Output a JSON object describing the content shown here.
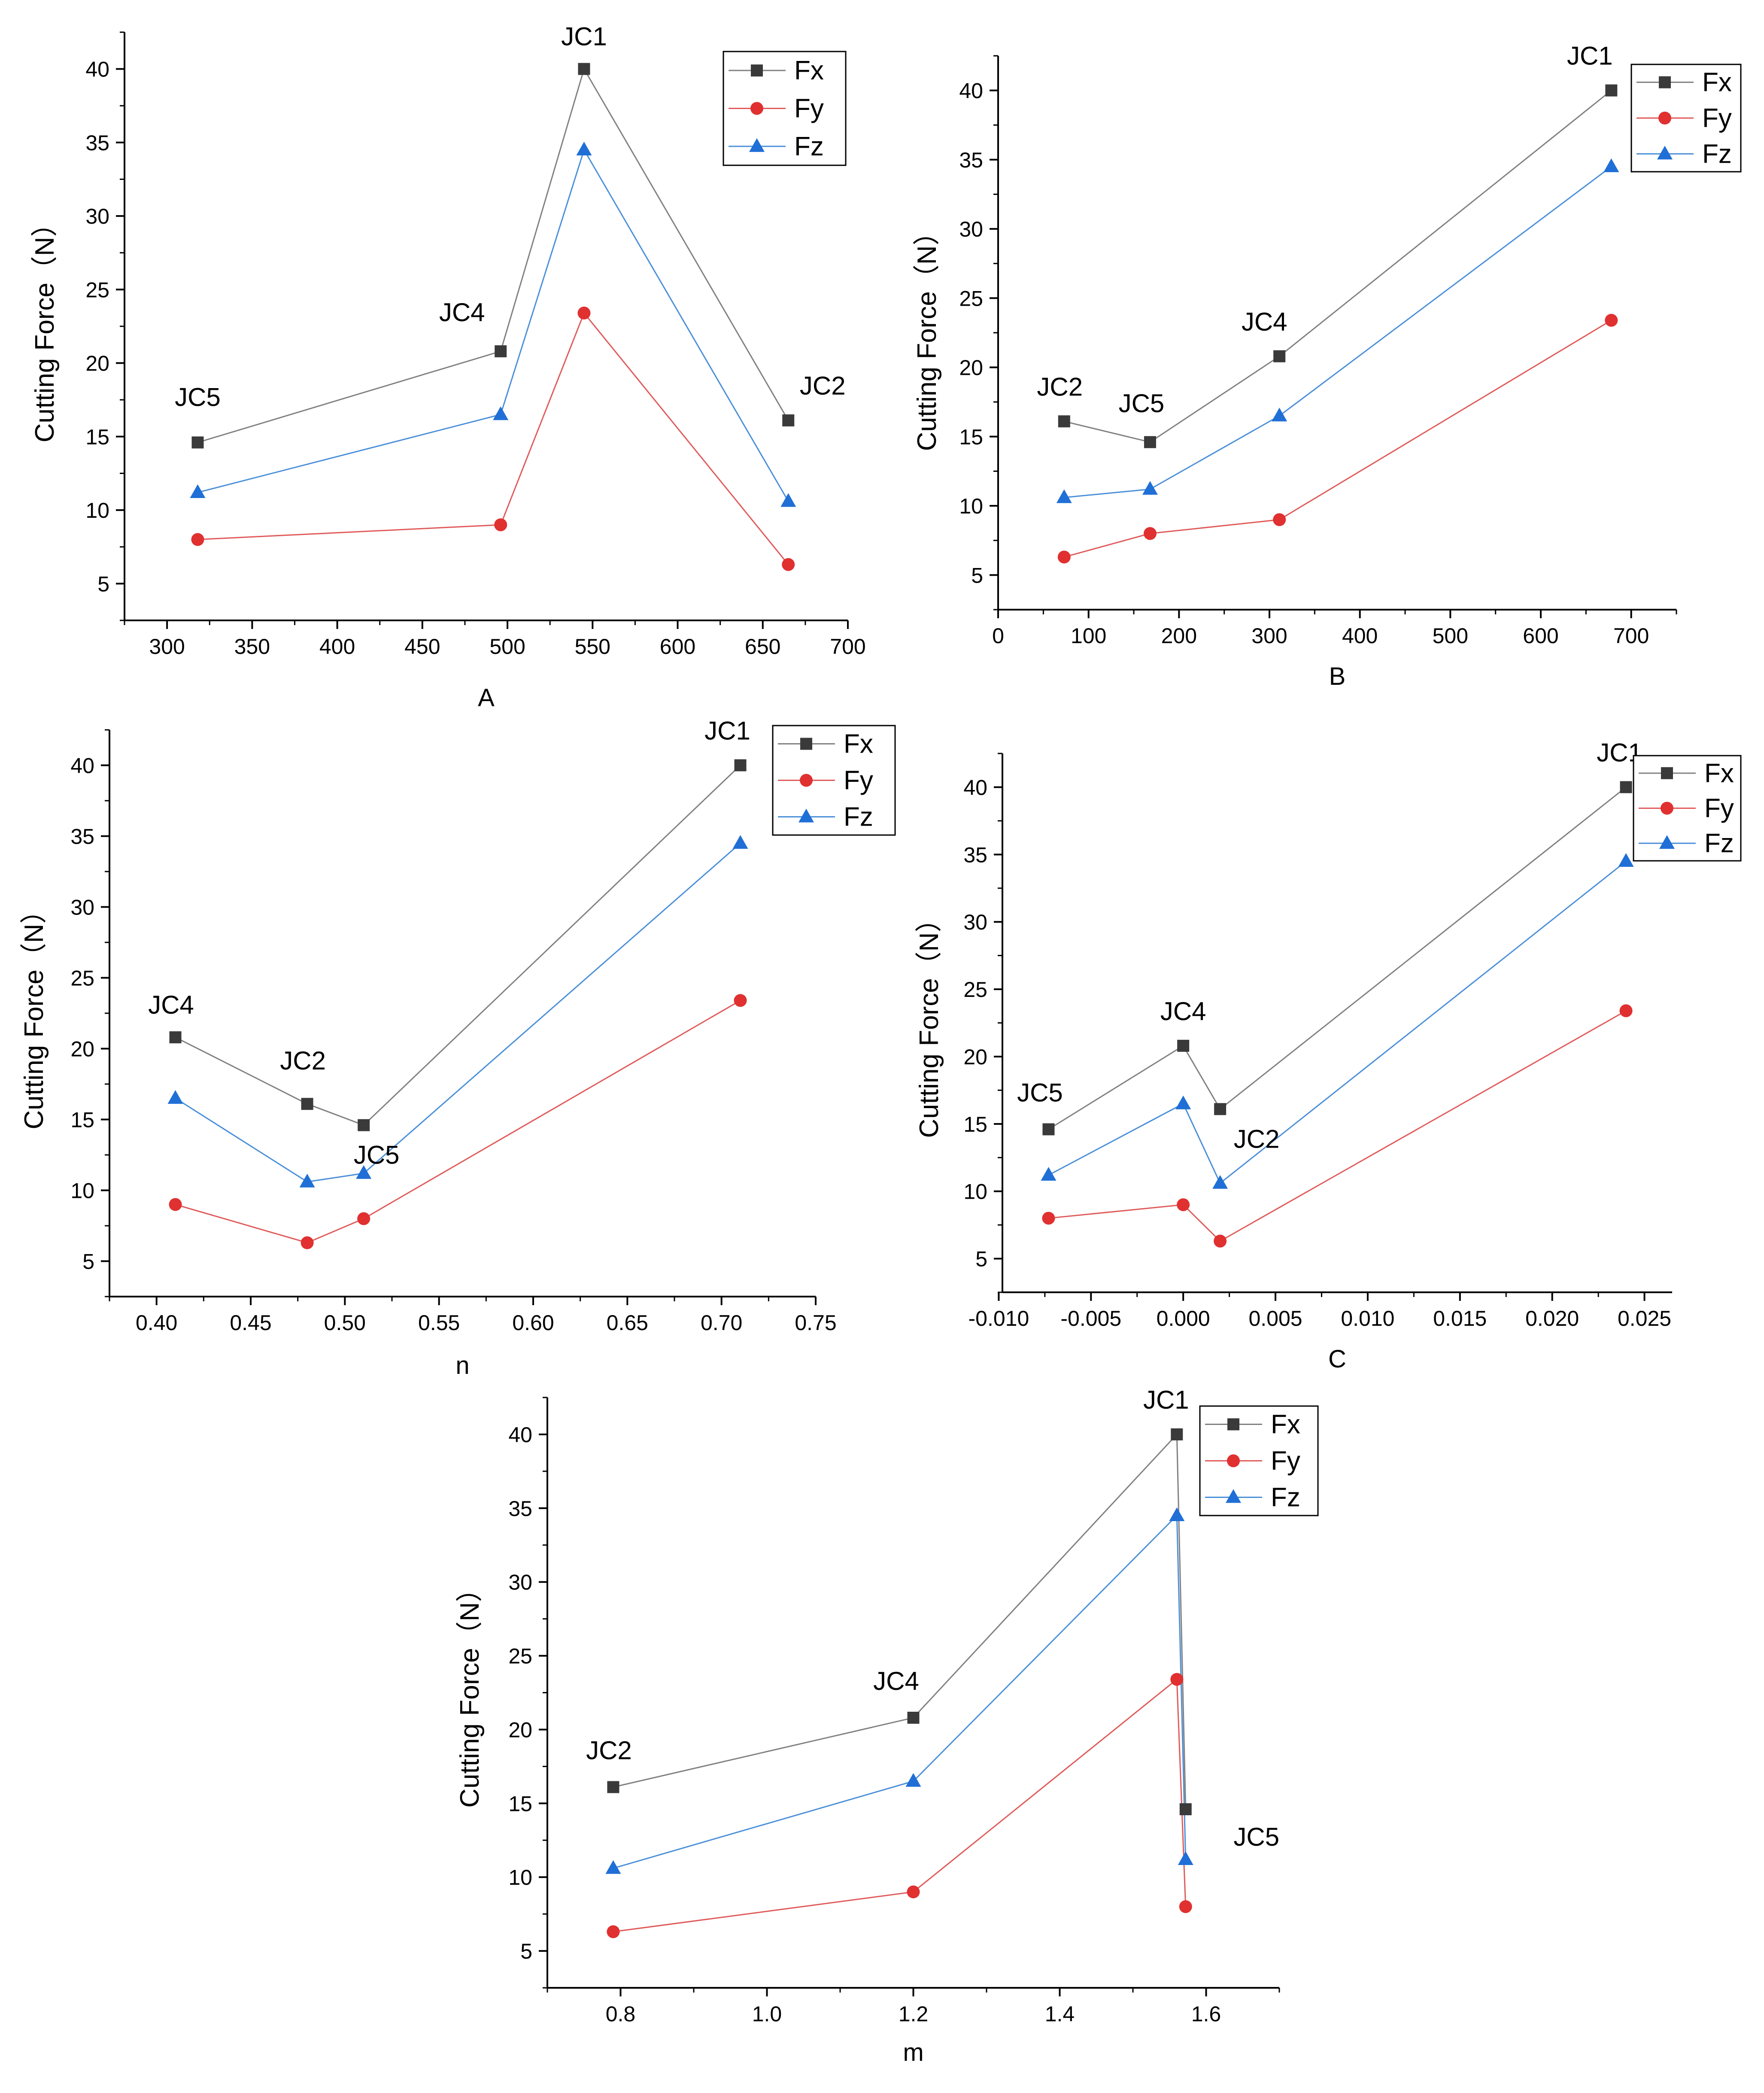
{
  "figure": {
    "ylabel_common": "Cutting Force（N）"
  },
  "legend": {
    "entries": [
      "Fx",
      "Fy",
      "Fz"
    ]
  },
  "series_colors": {
    "Fx": "#3a3a3a",
    "Fy": "#e03030",
    "Fz": "#1f6fd6"
  },
  "line_colors": {
    "Fx": "#808080",
    "Fy": "#e05a5a",
    "Fz": "#4a8fd9"
  },
  "chart_data": [
    {
      "id": "A",
      "type": "line",
      "xlabel": "A",
      "ylabel": "Cutting Force（N）",
      "x": [
        318,
        496,
        545,
        665
      ],
      "labels": [
        "JC5",
        "JC4",
        "JC1",
        "JC2"
      ],
      "series": [
        {
          "name": "Fx",
          "values": [
            14.6,
            20.8,
            40.0,
            16.1
          ]
        },
        {
          "name": "Fy",
          "values": [
            8.0,
            9.0,
            23.4,
            6.3
          ]
        },
        {
          "name": "Fz",
          "values": [
            11.2,
            16.5,
            34.5,
            10.6
          ]
        }
      ],
      "xticks": [
        "300",
        "350",
        "400",
        "450",
        "500",
        "550",
        "600",
        "650",
        "700"
      ],
      "yticks": [
        "5",
        "10",
        "15",
        "20",
        "25",
        "30",
        "35",
        "40"
      ],
      "xlim": [
        275,
        700
      ],
      "ylim": [
        2.5,
        42.5
      ],
      "legend": "top-right"
    },
    {
      "id": "B",
      "type": "line",
      "xlabel": "B",
      "ylabel": "Cutting Force（N）",
      "x": [
        73,
        168,
        311,
        678
      ],
      "labels": [
        "JC2",
        "JC5",
        "JC4",
        "JC1"
      ],
      "series": [
        {
          "name": "Fx",
          "values": [
            16.1,
            14.6,
            20.8,
            40.0
          ]
        },
        {
          "name": "Fy",
          "values": [
            6.3,
            8.0,
            9.0,
            23.4
          ]
        },
        {
          "name": "Fz",
          "values": [
            10.6,
            11.2,
            16.5,
            34.5
          ]
        }
      ],
      "xticks": [
        "0",
        "100",
        "200",
        "300",
        "400",
        "500",
        "600",
        "700"
      ],
      "yticks": [
        "5",
        "10",
        "15",
        "20",
        "25",
        "30",
        "35",
        "40"
      ],
      "xlim": [
        0,
        750
      ],
      "ylim": [
        2.5,
        42.5
      ],
      "legend": "top-right"
    },
    {
      "id": "n",
      "type": "line",
      "xlabel": "n",
      "ylabel": "Cutting Force（N）",
      "x": [
        0.41,
        0.48,
        0.51,
        0.71
      ],
      "labels": [
        "JC4",
        "JC2",
        "JC5",
        "JC1"
      ],
      "series": [
        {
          "name": "Fx",
          "values": [
            20.8,
            16.1,
            14.6,
            40.0
          ]
        },
        {
          "name": "Fy",
          "values": [
            9.0,
            6.3,
            8.0,
            23.4
          ]
        },
        {
          "name": "Fz",
          "values": [
            16.5,
            10.6,
            11.2,
            34.5
          ]
        }
      ],
      "xticks": [
        "0.40",
        "0.45",
        "0.50",
        "0.55",
        "0.60",
        "0.65",
        "0.70",
        "0.75"
      ],
      "yticks": [
        "5",
        "10",
        "15",
        "20",
        "25",
        "30",
        "35",
        "40"
      ],
      "xlim": [
        0.375,
        0.75
      ],
      "ylim": [
        2.5,
        42.5
      ],
      "legend": "top-right"
    },
    {
      "id": "C",
      "type": "line",
      "xlabel": "C",
      "ylabel": "Cutting Force（N）",
      "x": [
        -0.0073,
        0.0,
        0.002,
        0.024
      ],
      "labels": [
        "JC5",
        "JC4",
        "JC2",
        "JC1"
      ],
      "series": [
        {
          "name": "Fx",
          "values": [
            14.6,
            20.8,
            16.1,
            40.0
          ]
        },
        {
          "name": "Fy",
          "values": [
            8.0,
            9.0,
            6.3,
            23.4
          ]
        },
        {
          "name": "Fz",
          "values": [
            11.2,
            16.5,
            10.6,
            34.5
          ]
        }
      ],
      "xticks": [
        "-0.010",
        "-0.005",
        "0.000",
        "0.005",
        "0.010",
        "0.015",
        "0.020",
        "0.025"
      ],
      "yticks": [
        "5",
        "10",
        "15",
        "20",
        "25",
        "30",
        "35",
        "40"
      ],
      "xlim": [
        -0.0098,
        0.0265
      ],
      "ylim": [
        2.5,
        42.5
      ],
      "legend": "top-right"
    },
    {
      "id": "m",
      "type": "line",
      "xlabel": "m",
      "ylabel": "Cutting Force（N）",
      "x": [
        0.79,
        1.2,
        1.56,
        1.572
      ],
      "labels": [
        "JC2",
        "JC4",
        "JC1",
        "JC5"
      ],
      "series": [
        {
          "name": "Fx",
          "values": [
            16.1,
            20.8,
            40.0,
            14.6
          ]
        },
        {
          "name": "Fy",
          "values": [
            6.3,
            9.0,
            23.4,
            8.0
          ]
        },
        {
          "name": "Fz",
          "values": [
            10.6,
            16.5,
            34.5,
            11.2
          ]
        }
      ],
      "xticks": [
        "0.8",
        "1.0",
        "1.2",
        "1.4",
        "1.6"
      ],
      "yticks": [
        "5",
        "10",
        "15",
        "20",
        "25",
        "30",
        "35",
        "40"
      ],
      "xlim": [
        0.7,
        1.7
      ],
      "ylim": [
        2.5,
        42.5
      ],
      "legend": "top-right"
    }
  ]
}
